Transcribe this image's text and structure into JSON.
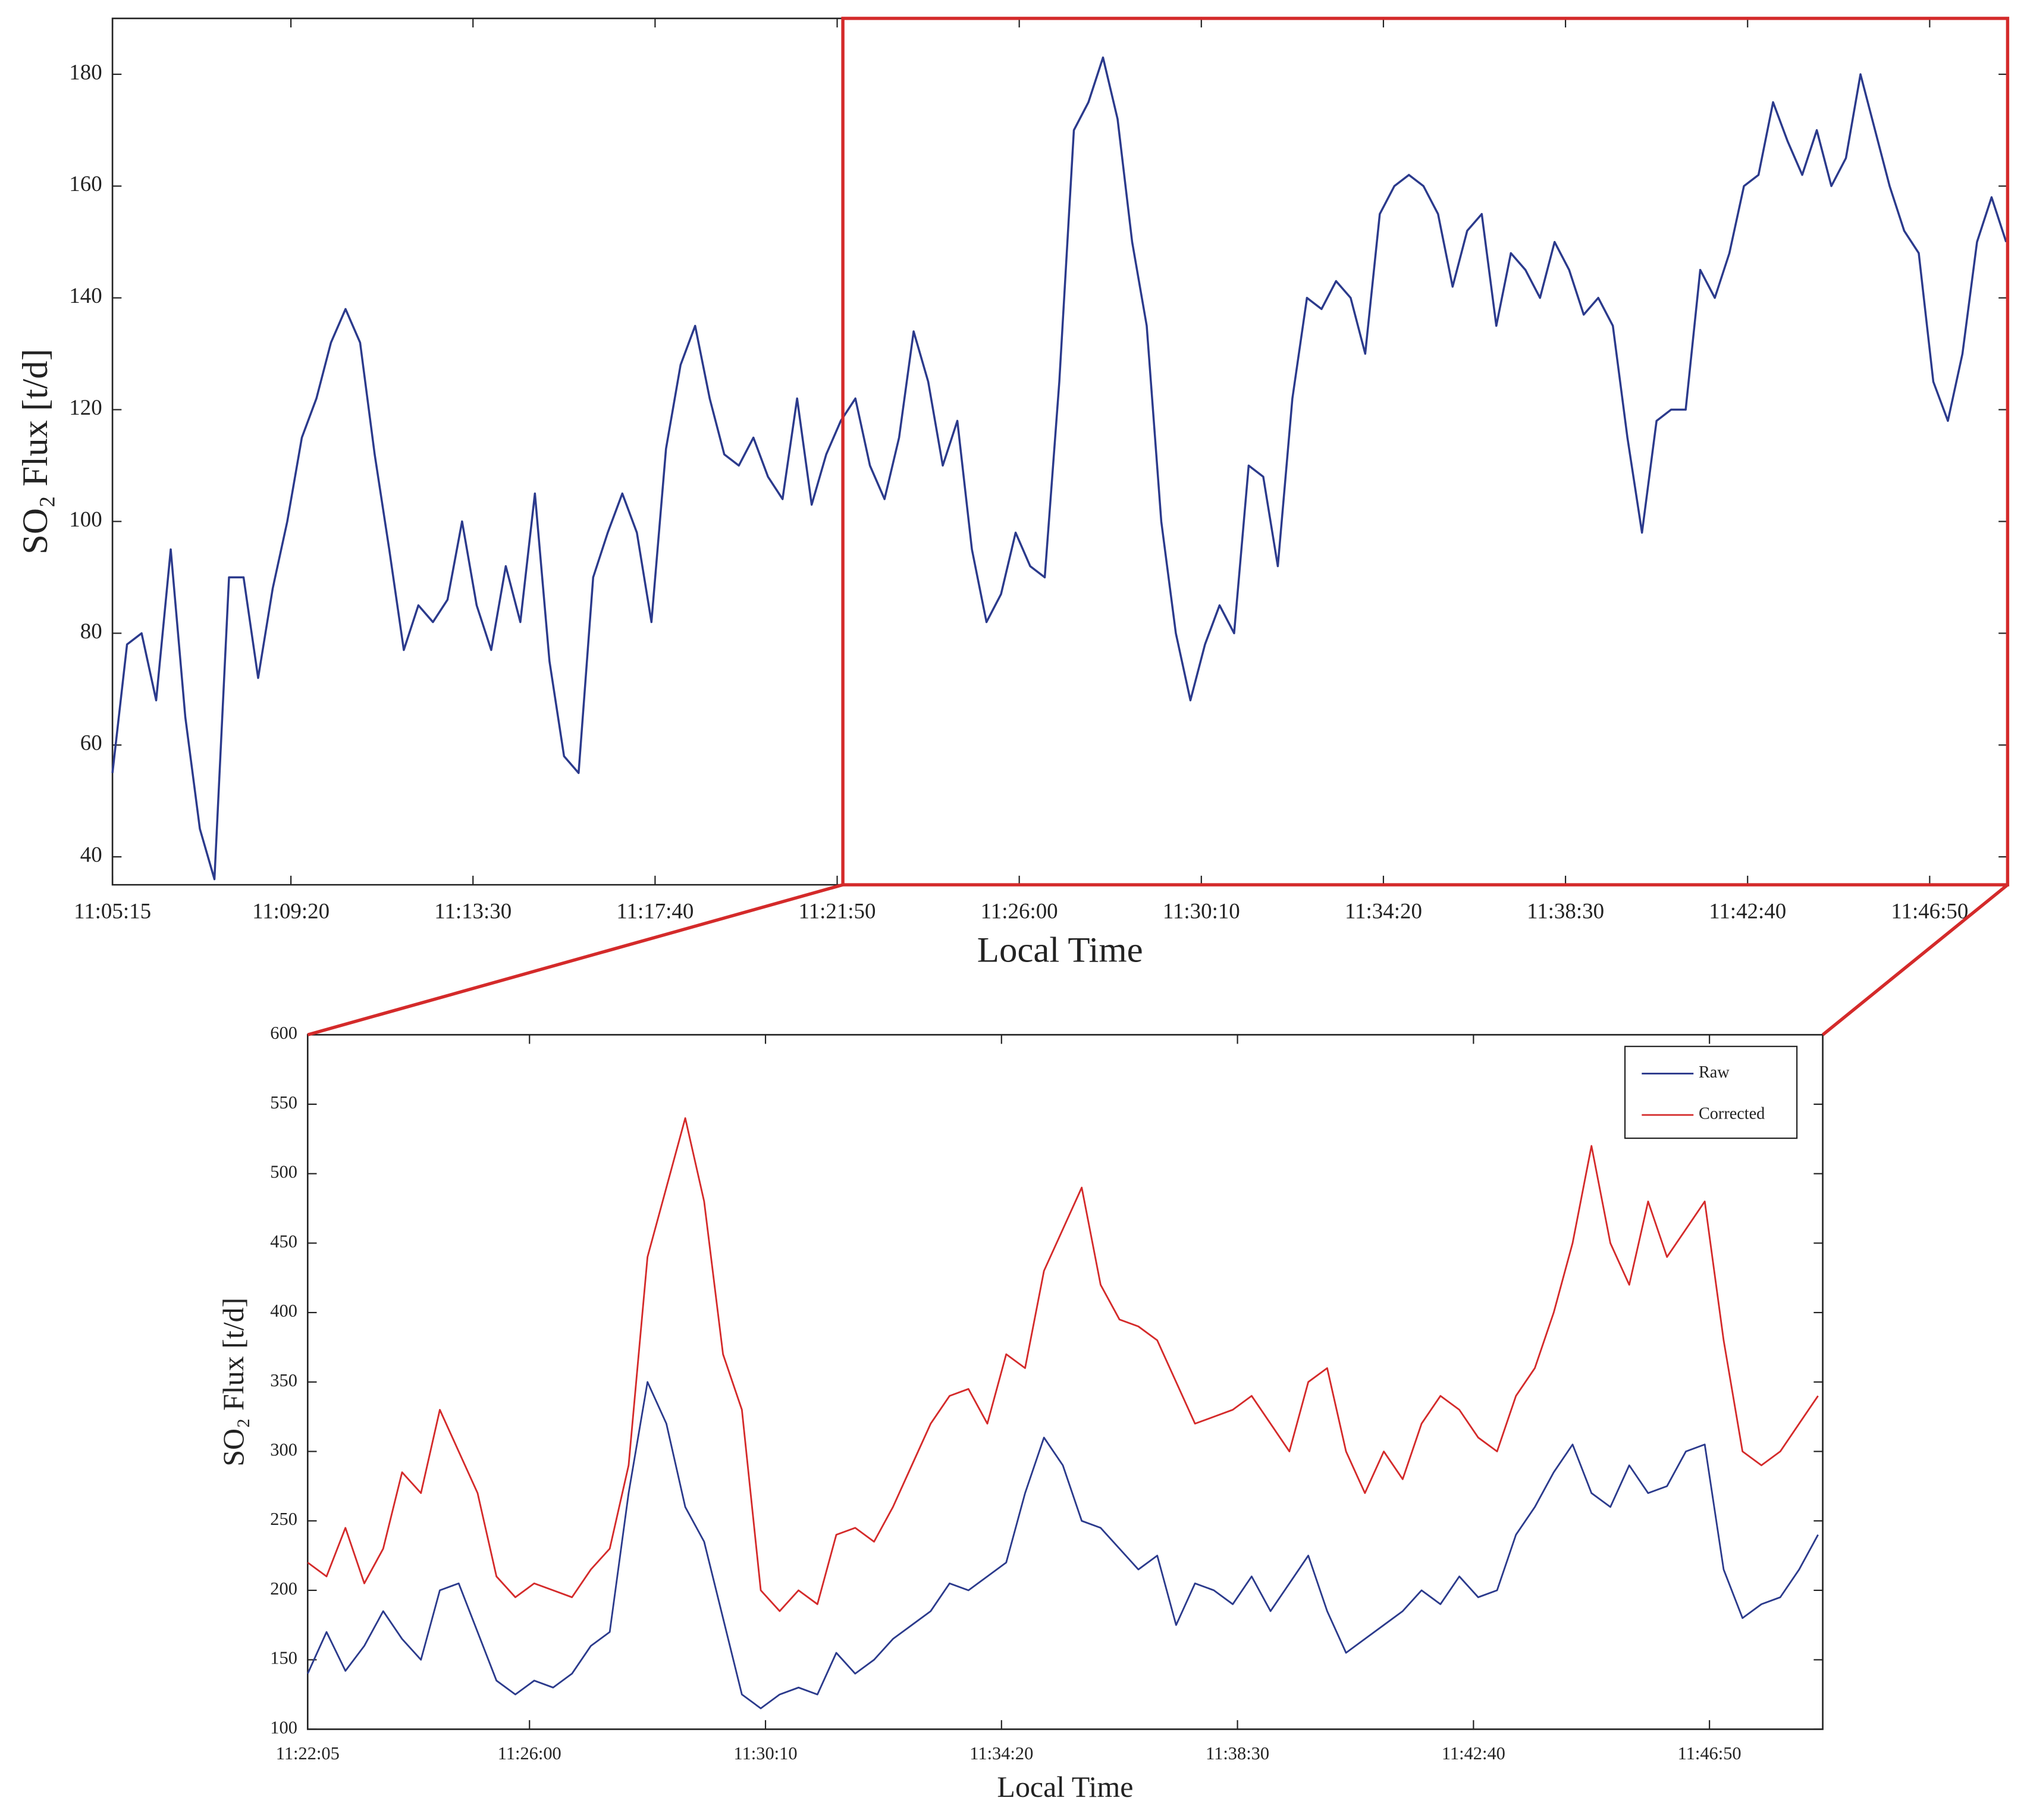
{
  "chart_data": [
    {
      "type": "line",
      "x_label": "Local Time",
      "y_label": "SO₂ Flux [t/d]",
      "x": [
        "11:05:15",
        "11:05:35",
        "11:05:55",
        "11:06:15",
        "11:06:35",
        "11:06:55",
        "11:07:15",
        "11:07:35",
        "11:07:55",
        "11:08:15",
        "11:08:35",
        "11:08:55",
        "11:09:15",
        "11:09:35",
        "11:09:55",
        "11:10:15",
        "11:10:35",
        "11:10:55",
        "11:11:15",
        "11:11:35",
        "11:11:55",
        "11:12:15",
        "11:12:35",
        "11:12:55",
        "11:13:15",
        "11:13:35",
        "11:13:55",
        "11:14:15",
        "11:14:35",
        "11:14:55",
        "11:15:15",
        "11:15:35",
        "11:15:55",
        "11:16:15",
        "11:16:35",
        "11:16:55",
        "11:17:15",
        "11:17:35",
        "11:17:55",
        "11:18:15",
        "11:18:35",
        "11:18:55",
        "11:19:15",
        "11:19:35",
        "11:19:55",
        "11:20:15",
        "11:20:35",
        "11:20:55",
        "11:21:15",
        "11:21:35",
        "11:21:55",
        "11:22:15",
        "11:22:35",
        "11:22:55",
        "11:23:15",
        "11:23:35",
        "11:23:55",
        "11:24:15",
        "11:24:35",
        "11:24:55",
        "11:25:15",
        "11:25:35",
        "11:25:55",
        "11:26:15",
        "11:26:35",
        "11:26:55",
        "11:27:15",
        "11:27:35",
        "11:27:55",
        "11:28:15",
        "11:28:35",
        "11:28:55",
        "11:29:15",
        "11:29:35",
        "11:29:55",
        "11:30:15",
        "11:30:35",
        "11:30:55",
        "11:31:15",
        "11:31:35",
        "11:31:55",
        "11:32:15",
        "11:32:35",
        "11:32:55",
        "11:33:15",
        "11:33:35",
        "11:33:55",
        "11:34:15",
        "11:34:35",
        "11:34:55",
        "11:35:15",
        "11:35:35",
        "11:35:55",
        "11:36:15",
        "11:36:35",
        "11:36:55",
        "11:37:15",
        "11:37:35",
        "11:37:55",
        "11:38:15",
        "11:38:35",
        "11:38:55",
        "11:39:15",
        "11:39:35",
        "11:39:55",
        "11:40:15",
        "11:40:35",
        "11:40:55",
        "11:41:15",
        "11:41:35",
        "11:41:55",
        "11:42:15",
        "11:42:35",
        "11:42:55",
        "11:43:15",
        "11:43:35",
        "11:43:55",
        "11:44:15",
        "11:44:35",
        "11:44:55",
        "11:45:15",
        "11:45:35",
        "11:45:55",
        "11:46:15",
        "11:46:35",
        "11:46:55",
        "11:47:15",
        "11:47:35",
        "11:47:55",
        "11:48:15",
        "11:48:35"
      ],
      "series": [
        {
          "color": "#2b3a8c",
          "values": [
            55,
            78,
            80,
            68,
            95,
            65,
            45,
            36,
            90,
            90,
            72,
            88,
            100,
            115,
            122,
            132,
            138,
            132,
            112,
            95,
            77,
            85,
            82,
            86,
            100,
            85,
            77,
            92,
            82,
            105,
            75,
            58,
            55,
            90,
            98,
            105,
            98,
            82,
            113,
            128,
            135,
            122,
            112,
            110,
            115,
            108,
            104,
            122,
            103,
            112,
            118,
            122,
            110,
            104,
            115,
            134,
            125,
            110,
            118,
            95,
            82,
            87,
            98,
            92,
            90,
            125,
            170,
            175,
            183,
            172,
            150,
            135,
            100,
            80,
            68,
            78,
            85,
            80,
            110,
            108,
            92,
            122,
            140,
            138,
            143,
            140,
            130,
            155,
            160,
            162,
            160,
            155,
            142,
            152,
            155,
            135,
            148,
            145,
            140,
            150,
            145,
            137,
            140,
            135,
            115,
            98,
            118,
            120,
            120,
            145,
            140,
            148,
            160,
            162,
            175,
            168,
            162,
            170,
            160,
            165,
            180,
            170,
            160,
            152,
            148,
            125,
            118,
            130,
            150,
            158,
            150
          ]
        }
      ],
      "xlim": [
        "11:05:15",
        "11:48:37"
      ],
      "xticks": [
        "11:05:15",
        "11:09:20",
        "11:13:30",
        "11:17:40",
        "11:21:50",
        "11:26:00",
        "11:30:10",
        "11:34:20",
        "11:38:30",
        "11:42:40",
        "11:46:50"
      ],
      "ylim": [
        35,
        190
      ],
      "yticks": [
        40,
        60,
        80,
        100,
        120,
        140,
        160,
        180
      ]
    },
    {
      "type": "line",
      "x_label": "Local Time",
      "y_label": "SO₂ Flux [t/d]",
      "x": [
        "11:22:05",
        "11:22:25",
        "11:22:45",
        "11:23:05",
        "11:23:25",
        "11:23:45",
        "11:24:05",
        "11:24:25",
        "11:24:45",
        "11:25:05",
        "11:25:25",
        "11:25:45",
        "11:26:05",
        "11:26:25",
        "11:26:45",
        "11:27:05",
        "11:27:25",
        "11:27:45",
        "11:28:05",
        "11:28:25",
        "11:28:45",
        "11:29:05",
        "11:29:25",
        "11:29:45",
        "11:30:05",
        "11:30:25",
        "11:30:45",
        "11:31:05",
        "11:31:25",
        "11:31:45",
        "11:32:05",
        "11:32:25",
        "11:32:45",
        "11:33:05",
        "11:33:25",
        "11:33:45",
        "11:34:05",
        "11:34:25",
        "11:34:45",
        "11:35:05",
        "11:35:25",
        "11:35:45",
        "11:36:05",
        "11:36:25",
        "11:36:45",
        "11:37:05",
        "11:37:25",
        "11:37:45",
        "11:38:05",
        "11:38:25",
        "11:38:45",
        "11:39:05",
        "11:39:25",
        "11:39:45",
        "11:40:05",
        "11:40:25",
        "11:40:45",
        "11:41:05",
        "11:41:25",
        "11:41:45",
        "11:42:05",
        "11:42:25",
        "11:42:45",
        "11:43:05",
        "11:43:25",
        "11:43:45",
        "11:44:05",
        "11:44:25",
        "11:44:45",
        "11:45:05",
        "11:45:25",
        "11:45:45",
        "11:46:05",
        "11:46:25",
        "11:46:45",
        "11:47:05",
        "11:47:25",
        "11:47:45",
        "11:48:05",
        "11:48:25",
        "11:48:45"
      ],
      "series": [
        {
          "name": "Raw",
          "color": "#2b3a8c",
          "values": [
            140,
            170,
            142,
            160,
            185,
            165,
            150,
            200,
            205,
            170,
            135,
            125,
            135,
            130,
            140,
            160,
            170,
            270,
            350,
            320,
            260,
            235,
            180,
            125,
            115,
            125,
            130,
            125,
            155,
            140,
            150,
            165,
            175,
            185,
            205,
            200,
            210,
            220,
            270,
            310,
            290,
            250,
            245,
            230,
            215,
            225,
            175,
            205,
            200,
            190,
            210,
            185,
            205,
            225,
            185,
            155,
            165,
            175,
            185,
            200,
            190,
            210,
            195,
            200,
            240,
            260,
            285,
            305,
            270,
            260,
            290,
            270,
            275,
            300,
            305,
            215,
            180,
            190,
            195,
            215,
            240
          ]
        },
        {
          "name": "Corrected",
          "color": "#d42a2a",
          "values": [
            220,
            210,
            245,
            205,
            230,
            285,
            270,
            330,
            300,
            270,
            210,
            195,
            205,
            200,
            195,
            215,
            230,
            290,
            440,
            490,
            540,
            480,
            370,
            330,
            200,
            185,
            200,
            190,
            240,
            245,
            235,
            260,
            290,
            320,
            340,
            345,
            320,
            370,
            360,
            430,
            460,
            490,
            420,
            395,
            390,
            380,
            350,
            320,
            325,
            330,
            340,
            320,
            300,
            350,
            360,
            300,
            270,
            300,
            280,
            320,
            340,
            330,
            310,
            300,
            340,
            360,
            400,
            450,
            520,
            450,
            420,
            480,
            440,
            460,
            480,
            380,
            300,
            290,
            300,
            320,
            340
          ]
        }
      ],
      "legend": "upper right",
      "xlim": [
        "11:22:05",
        "11:48:50"
      ],
      "xticks": [
        "11:22:05",
        "11:26:00",
        "11:30:10",
        "11:34:20",
        "11:38:30",
        "11:42:40",
        "11:46:50"
      ],
      "ylim": [
        100,
        600
      ],
      "yticks": [
        100,
        150,
        200,
        250,
        300,
        350,
        400,
        450,
        500,
        550,
        600
      ]
    }
  ]
}
